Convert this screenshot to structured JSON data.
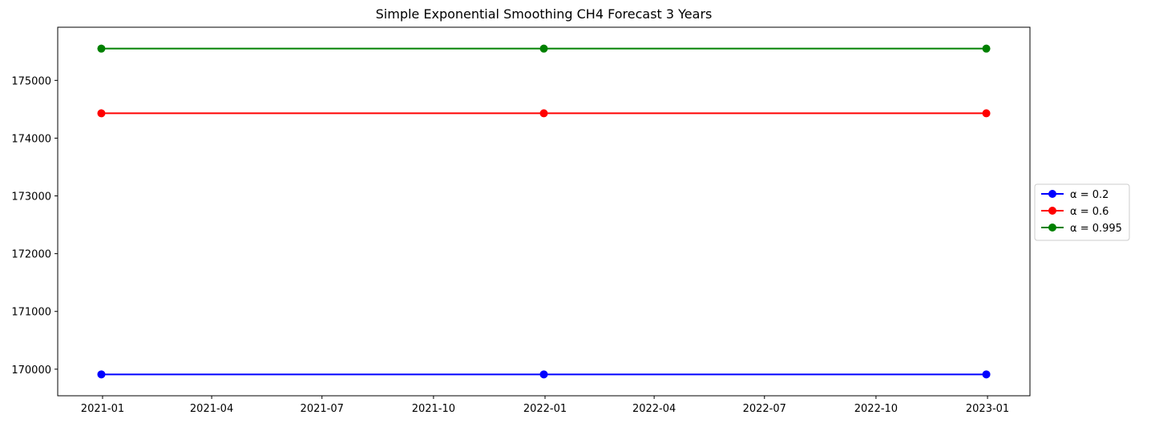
{
  "chart_data": {
    "type": "line",
    "title": "Simple Exponential Smoothing CH4 Forecast 3 Years",
    "xlabel": "",
    "ylabel": "",
    "x": [
      "2020-12-31",
      "2021-12-31",
      "2022-12-31"
    ],
    "x_ticks": [
      "2021-01-01",
      "2021-04-01",
      "2021-07-01",
      "2021-10-01",
      "2022-01-01",
      "2022-04-01",
      "2022-07-01",
      "2022-10-01",
      "2023-01-01"
    ],
    "x_tick_labels": [
      "2021-01",
      "2021-04",
      "2021-07",
      "2021-10",
      "2022-01",
      "2022-04",
      "2022-07",
      "2022-10",
      "2023-01"
    ],
    "xlim": [
      "2020-11-25",
      "2023-02-05"
    ],
    "y_ticks": [
      170000,
      171000,
      172000,
      173000,
      174000,
      175000
    ],
    "ylim": [
      169540,
      175920
    ],
    "grid": false,
    "legend_position": "center-right outside",
    "series": [
      {
        "name": "α = 0.2",
        "color": "#0000ff",
        "values": [
          169910,
          169910,
          169910
        ]
      },
      {
        "name": "α = 0.6",
        "color": "#ff0000",
        "values": [
          174430,
          174430,
          174430
        ]
      },
      {
        "name": "α = 0.995",
        "color": "#008000",
        "values": [
          175550,
          175550,
          175550
        ]
      }
    ]
  }
}
